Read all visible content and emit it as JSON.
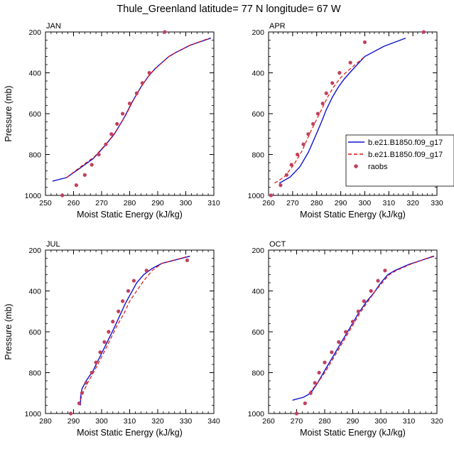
{
  "figure": {
    "title": "Thule_Greenland  latitude= 77 N longitude= 67 W"
  },
  "legend": {
    "entries": [
      {
        "label": "b.e21.B1850.f09_g17",
        "color": "#1010d0",
        "dash": "solid"
      },
      {
        "label": "b.e21.B1850.f09_g17",
        "color": "#e01010",
        "dash": "dashed"
      },
      {
        "label": "raobs",
        "color": "#c04060",
        "marker": "dot"
      }
    ]
  },
  "chart_data": [
    {
      "type": "line",
      "panel": "JAN",
      "xlabel": "Moist Static Energy (kJ/kg)",
      "ylabel": "Pressure (mb)",
      "xlim": [
        250,
        310
      ],
      "ylim": [
        1000,
        200
      ],
      "xticks": [
        250,
        260,
        270,
        280,
        290,
        300,
        310
      ],
      "yticks": [
        200,
        400,
        600,
        800,
        1000
      ],
      "series": [
        {
          "name": "b.e21.B1850.f09_g17",
          "style": "solid",
          "x": [
            252.5,
            257.5,
            262,
            267,
            271,
            274.5,
            278,
            281,
            284,
            286.5,
            289,
            291.5,
            294,
            296.5,
            301.5,
            309
          ],
          "y": [
            930,
            913,
            870,
            820,
            760,
            700,
            620,
            540,
            470,
            420,
            380,
            350,
            320,
            300,
            265,
            230
          ]
        },
        {
          "name": "b.e21.B1850.f09_g17",
          "style": "dashed",
          "x": [
            257.5,
            262.5,
            267.5,
            271.5,
            275,
            278.5,
            281.5,
            284.5,
            287,
            289.5,
            292,
            294,
            296.5,
            301.5,
            308.5
          ],
          "y": [
            913,
            860,
            810,
            750,
            690,
            610,
            530,
            460,
            410,
            375,
            345,
            320,
            300,
            265,
            230
          ]
        },
        {
          "name": "raobs",
          "style": "points",
          "x": [
            256,
            261,
            264,
            266.5,
            269,
            271.5,
            273.5,
            275.5,
            277.5,
            280,
            282.5,
            284.5,
            287,
            292.5
          ],
          "y": [
            1000,
            950,
            900,
            850,
            800,
            750,
            700,
            650,
            600,
            550,
            500,
            450,
            400,
            200
          ]
        }
      ]
    },
    {
      "type": "line",
      "panel": "APR",
      "xlabel": "Moist Static Energy (kJ/kg)",
      "ylabel": "",
      "xlim": [
        260,
        330
      ],
      "ylim": [
        1000,
        200
      ],
      "xticks": [
        260,
        270,
        280,
        290,
        300,
        310,
        320,
        330
      ],
      "yticks": [
        200,
        400,
        600,
        800,
        1000
      ],
      "series": [
        {
          "name": "b.e21.B1850.f09_g17",
          "style": "solid",
          "x": [
            264.5,
            269,
            273,
            276.5,
            279.5,
            282,
            284,
            286.5,
            289,
            291.5,
            294.5,
            300,
            308,
            317
          ],
          "y": [
            940,
            910,
            860,
            790,
            710,
            640,
            580,
            520,
            470,
            430,
            390,
            320,
            270,
            230
          ]
        },
        {
          "name": "b.e21.B1850.f09_g17",
          "style": "dashed",
          "x": [
            262.5,
            266.5,
            270.5,
            274,
            277,
            279.5,
            282,
            284.5,
            287,
            289.5,
            292,
            295,
            300
          ],
          "y": [
            940,
            910,
            850,
            780,
            700,
            640,
            580,
            520,
            470,
            430,
            400,
            370,
            320
          ]
        },
        {
          "name": "raobs",
          "style": "points",
          "x": [
            261,
            265,
            267.5,
            269.5,
            272,
            274.5,
            276.5,
            278.5,
            280.5,
            282.5,
            284,
            286.5,
            289.5,
            294,
            300,
            324.5
          ],
          "y": [
            1000,
            950,
            900,
            850,
            800,
            750,
            700,
            650,
            600,
            550,
            500,
            450,
            400,
            350,
            250,
            200
          ]
        }
      ]
    },
    {
      "type": "line",
      "panel": "JUL",
      "xlabel": "Moist Static Energy (kJ/kg)",
      "ylabel": "Pressure (mb)",
      "xlim": [
        280,
        340
      ],
      "ylim": [
        1000,
        200
      ],
      "xticks": [
        280,
        290,
        300,
        310,
        320,
        330,
        340
      ],
      "yticks": [
        200,
        400,
        600,
        800,
        1000
      ],
      "series": [
        {
          "name": "b.e21.B1850.f09_g17",
          "style": "solid",
          "x": [
            292.5,
            292.5,
            293,
            294.5,
            297,
            299.5,
            302,
            304.5,
            306.5,
            308.5,
            310.5,
            312.5,
            315,
            318,
            321.5,
            331.5
          ],
          "y": [
            960,
            920,
            880,
            840,
            790,
            720,
            650,
            580,
            520,
            460,
            410,
            360,
            320,
            290,
            265,
            230
          ]
        },
        {
          "name": "b.e21.B1850.f09_g17",
          "style": "dashed",
          "x": [
            292,
            293,
            295,
            297.5,
            300.5,
            303,
            305.5,
            308,
            310,
            312.5,
            315,
            318,
            321.5,
            331
          ],
          "y": [
            960,
            910,
            850,
            790,
            710,
            640,
            570,
            510,
            450,
            400,
            350,
            300,
            265,
            230
          ]
        },
        {
          "name": "raobs",
          "style": "points",
          "x": [
            289,
            292,
            293,
            294.5,
            296.5,
            298,
            299.5,
            301,
            302.5,
            304,
            306,
            307.5,
            309.5,
            311.5,
            316,
            330.5
          ],
          "y": [
            1000,
            950,
            900,
            850,
            800,
            750,
            700,
            650,
            600,
            550,
            500,
            450,
            400,
            350,
            300,
            250
          ]
        }
      ]
    },
    {
      "type": "line",
      "panel": "OCT",
      "xlabel": "Moist Static Energy (kJ/kg)",
      "ylabel": "",
      "xlim": [
        260,
        320
      ],
      "ylim": [
        1000,
        200
      ],
      "xticks": [
        260,
        270,
        280,
        290,
        300,
        310,
        320
      ],
      "yticks": [
        200,
        400,
        600,
        800,
        1000
      ],
      "series": [
        {
          "name": "b.e21.B1850.f09_g17",
          "style": "solid",
          "x": [
            268.5,
            272.5,
            275,
            277.5,
            280,
            283,
            286,
            289,
            292,
            295,
            297.5,
            300,
            302.5,
            305,
            310,
            319
          ],
          "y": [
            935,
            920,
            900,
            850,
            790,
            720,
            650,
            580,
            510,
            450,
            410,
            360,
            320,
            300,
            270,
            230
          ]
        },
        {
          "name": "b.e21.B1850.f09_g17",
          "style": "dashed",
          "x": [
            274.5,
            277.5,
            280.5,
            283.5,
            286.5,
            289.5,
            292.5,
            295.5,
            298,
            300.5,
            303,
            305.5,
            310.5,
            318.5
          ],
          "y": [
            900,
            850,
            790,
            720,
            650,
            580,
            510,
            450,
            400,
            360,
            320,
            300,
            270,
            230
          ]
        },
        {
          "name": "raobs",
          "style": "points",
          "x": [
            270,
            273,
            275,
            276.5,
            278,
            280,
            282.5,
            285,
            287.5,
            290,
            292,
            294,
            296.5,
            299,
            301.5
          ],
          "y": [
            1000,
            950,
            900,
            850,
            800,
            750,
            700,
            650,
            600,
            550,
            500,
            450,
            400,
            350,
            300
          ]
        }
      ]
    }
  ]
}
